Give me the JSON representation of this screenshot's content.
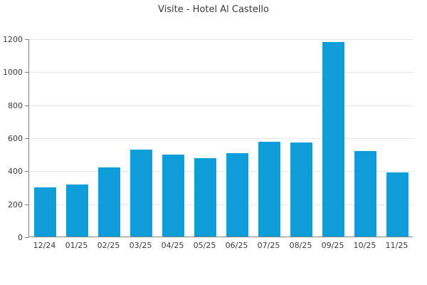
{
  "title": "Visite - Hotel Al Castello",
  "colors": {
    "bar": "#0e9dd8",
    "grid": "#e6e6e6",
    "axis": "#808080",
    "text": "#3a3a3a",
    "background": "#ffffff"
  },
  "chart_data": {
    "type": "bar",
    "title": "Visite - Hotel Al Castello",
    "categories": [
      "12/24",
      "01/25",
      "02/25",
      "03/25",
      "04/25",
      "05/25",
      "06/25",
      "07/25",
      "08/25",
      "09/25",
      "10/25",
      "11/25"
    ],
    "values": [
      300,
      315,
      420,
      525,
      495,
      475,
      505,
      575,
      570,
      1180,
      520,
      390
    ],
    "xlabel": "",
    "ylabel": "",
    "ylim": [
      0,
      1200
    ],
    "yticks": [
      0,
      200,
      400,
      600,
      800,
      1000,
      1200
    ],
    "grid": "horizontal-only",
    "legend": "none",
    "bar_color": "#0e9dd8"
  }
}
